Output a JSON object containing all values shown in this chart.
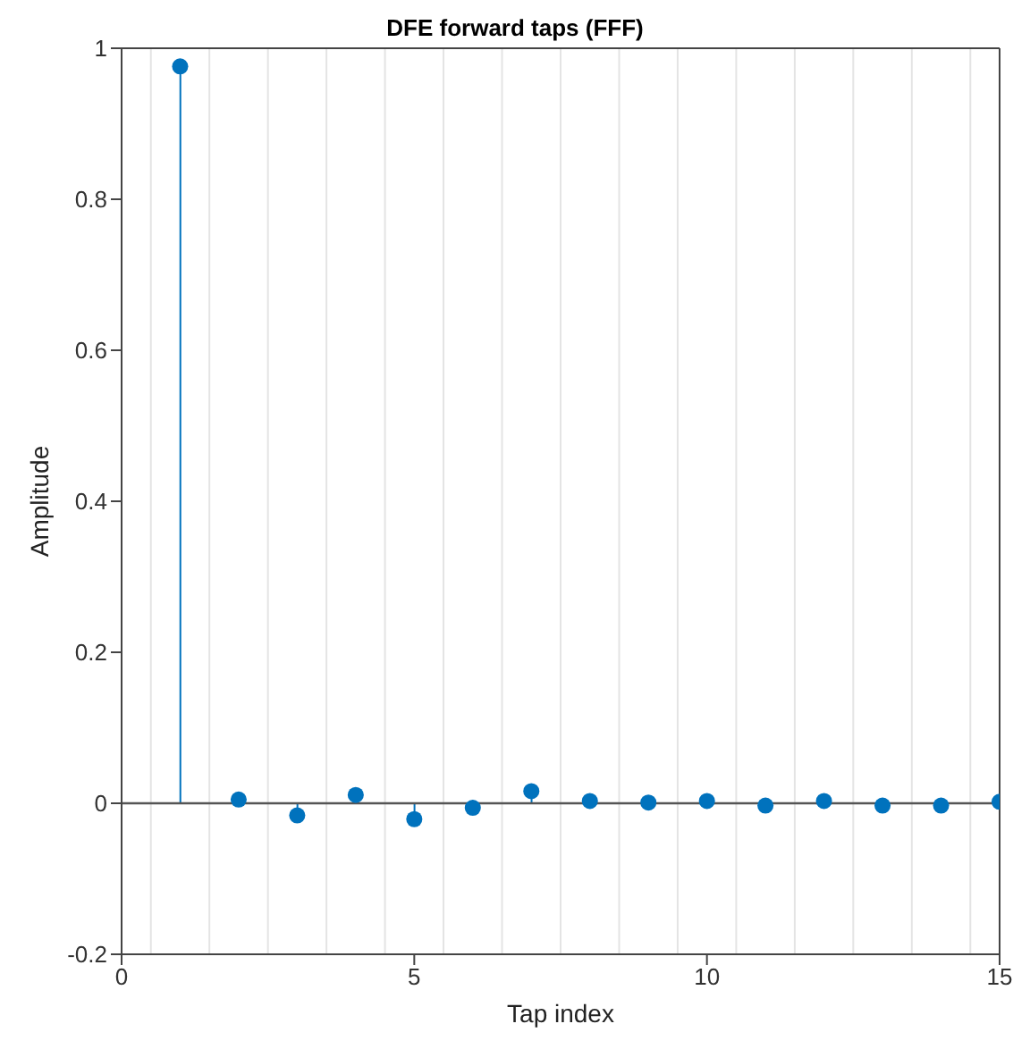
{
  "chart_data": {
    "type": "lollipop",
    "title": "DFE forward taps (FFF)",
    "xlabel": "Tap index",
    "ylabel": "Amplitude",
    "x": [
      1,
      2,
      3,
      4,
      5,
      6,
      7,
      8,
      9,
      10,
      11,
      12,
      13,
      14,
      15
    ],
    "values": [
      0.976,
      0.005,
      -0.016,
      0.011,
      -0.021,
      -0.006,
      0.016,
      0.003,
      0.001,
      0.003,
      -0.003,
      0.003,
      -0.003,
      -0.003,
      0.002
    ],
    "color": "#0072bd",
    "marker": "circle",
    "xlim": [
      0,
      15
    ],
    "xticks": [
      0,
      5,
      10,
      15
    ],
    "ylim": [
      -0.2,
      1
    ],
    "yticks": [
      -0.2,
      0,
      0.2,
      0.4,
      0.6,
      0.8,
      1
    ],
    "ref_lines": [
      {
        "axis": "y",
        "value": 0,
        "color": "#555555"
      }
    ],
    "grid": true
  }
}
